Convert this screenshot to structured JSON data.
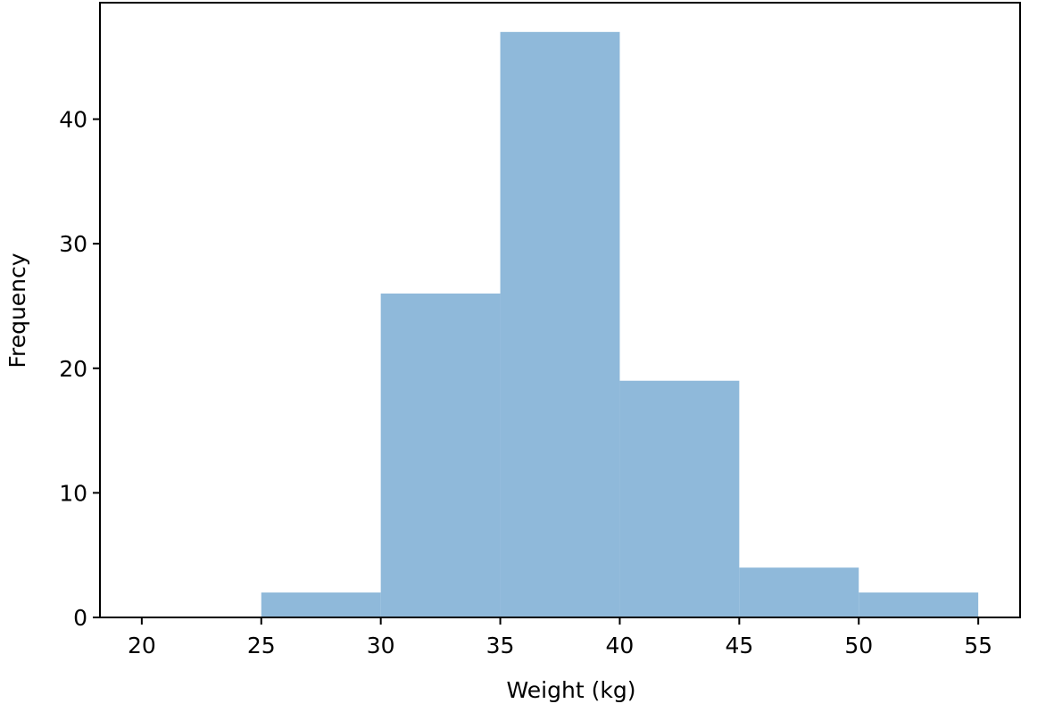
{
  "chart_data": {
    "type": "bar",
    "subtype": "histogram",
    "xlabel": "Weight (kg)",
    "ylabel": "Frequency",
    "bins": [
      {
        "start": 25,
        "end": 30,
        "value": 2
      },
      {
        "start": 30,
        "end": 35,
        "value": 26
      },
      {
        "start": 35,
        "end": 40,
        "value": 47
      },
      {
        "start": 40,
        "end": 45,
        "value": 19
      },
      {
        "start": 45,
        "end": 50,
        "value": 4
      },
      {
        "start": 50,
        "end": 55,
        "value": 2
      }
    ],
    "xlim": [
      18.25,
      56.75
    ],
    "ylim": [
      0,
      49.35
    ],
    "xticks": [
      20,
      25,
      30,
      35,
      40,
      45,
      50,
      55
    ],
    "yticks": [
      0,
      10,
      20,
      30,
      40
    ],
    "bar_color": "#8fb9da",
    "grid": false,
    "legend": "none"
  }
}
